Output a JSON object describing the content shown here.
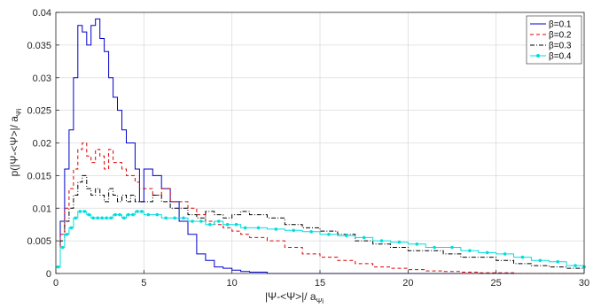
{
  "chart_data": {
    "type": "line",
    "style": "stairs",
    "xlim": [
      0,
      30
    ],
    "ylim": [
      0,
      0.04
    ],
    "x_ticks": [
      0,
      5,
      10,
      15,
      20,
      25,
      30
    ],
    "y_ticks": [
      0,
      0.005,
      0.01,
      0.015,
      0.02,
      0.025,
      0.03,
      0.035,
      0.04
    ],
    "x_tick_labels": [
      "0",
      "5",
      "10",
      "15",
      "20",
      "25",
      "30"
    ],
    "y_tick_labels": [
      "0",
      "0.005",
      "0.01",
      "0.015",
      "0.02",
      "0.025",
      "0.03",
      "0.035",
      "0.04"
    ],
    "xlabel_main": "|Ψ-<Ψ>|/ a",
    "xlabel_sub": "Ψi",
    "ylabel_main": "p(|Ψ-<Ψ>|/ a",
    "ylabel_sub": "Ψi",
    "grid": true,
    "legend_position": "top-right",
    "x": [
      0,
      0.25,
      0.5,
      0.75,
      1,
      1.25,
      1.5,
      1.75,
      2,
      2.25,
      2.5,
      2.75,
      3,
      3.25,
      3.5,
      3.75,
      4,
      4.25,
      4.5,
      4.75,
      5,
      5.5,
      6,
      6.5,
      7,
      7.5,
      8,
      8.5,
      9,
      9.5,
      10,
      10.5,
      11,
      12,
      13,
      14,
      15,
      16,
      17,
      18,
      19,
      20,
      21,
      22,
      23,
      24,
      25,
      26,
      27,
      28,
      29,
      30
    ],
    "series": [
      {
        "name": "β=0.1",
        "color": "#0000cc",
        "dash": "solid",
        "marker": "none",
        "values": [
          0.001,
          0.008,
          0.016,
          0.022,
          0.03,
          0.038,
          0.037,
          0.035,
          0.038,
          0.039,
          0.036,
          0.034,
          0.03,
          0.027,
          0.025,
          0.022,
          0.02,
          0.02,
          0.016,
          0.011,
          0.016,
          0.015,
          0.013,
          0.011,
          0.008,
          0.006,
          0.003,
          0.002,
          0.001,
          0.0008,
          0.0005,
          0.0003,
          0.0002,
          0,
          0,
          0,
          0,
          0,
          0,
          0,
          0,
          0,
          0,
          0,
          0,
          0,
          0,
          0,
          0,
          0,
          0,
          0
        ]
      },
      {
        "name": "β=0.2",
        "color": "#dd0000",
        "dash": "4,3",
        "marker": "none",
        "values": [
          0.001,
          0.006,
          0.01,
          0.013,
          0.016,
          0.019,
          0.02,
          0.018,
          0.017,
          0.019,
          0.018,
          0.016,
          0.019,
          0.017,
          0.017,
          0.016,
          0.015,
          0.015,
          0.014,
          0.013,
          0.013,
          0.012,
          0.013,
          0.011,
          0.011,
          0.01,
          0.009,
          0.008,
          0.0075,
          0.007,
          0.0065,
          0.006,
          0.0055,
          0.005,
          0.004,
          0.003,
          0.0025,
          0.002,
          0.0015,
          0.001,
          0.0008,
          0.0006,
          0.0004,
          0.0003,
          0.0002,
          0.0001,
          0.0001,
          0,
          0,
          0,
          0,
          0
        ]
      },
      {
        "name": "β=0.3",
        "color": "#000000",
        "dash": "5,2,1,2",
        "marker": "none",
        "values": [
          0.001,
          0.005,
          0.008,
          0.01,
          0.012,
          0.014,
          0.015,
          0.013,
          0.012,
          0.013,
          0.012,
          0.011,
          0.013,
          0.012,
          0.011,
          0.012,
          0.011,
          0.012,
          0.011,
          0.011,
          0.011,
          0.012,
          0.011,
          0.01,
          0.01,
          0.009,
          0.0085,
          0.0095,
          0.009,
          0.0085,
          0.009,
          0.0095,
          0.009,
          0.0085,
          0.0075,
          0.007,
          0.0065,
          0.006,
          0.005,
          0.0045,
          0.004,
          0.0035,
          0.0035,
          0.003,
          0.0025,
          0.0025,
          0.002,
          0.0015,
          0.0012,
          0.001,
          0.0008,
          0.0005
        ]
      },
      {
        "name": "β=0.4",
        "color": "#00dede",
        "dash": "solid",
        "marker": "circle",
        "values": [
          0.001,
          0.004,
          0.006,
          0.007,
          0.0085,
          0.0095,
          0.0095,
          0.009,
          0.0085,
          0.0085,
          0.0085,
          0.0085,
          0.0085,
          0.009,
          0.009,
          0.0085,
          0.009,
          0.009,
          0.0095,
          0.0095,
          0.009,
          0.009,
          0.0085,
          0.0085,
          0.0085,
          0.008,
          0.008,
          0.0075,
          0.008,
          0.0075,
          0.0075,
          0.007,
          0.007,
          0.0068,
          0.0066,
          0.0064,
          0.006,
          0.0058,
          0.0055,
          0.005,
          0.0048,
          0.0045,
          0.004,
          0.004,
          0.0035,
          0.0032,
          0.003,
          0.0025,
          0.002,
          0.0018,
          0.0012,
          0.001
        ]
      }
    ]
  }
}
